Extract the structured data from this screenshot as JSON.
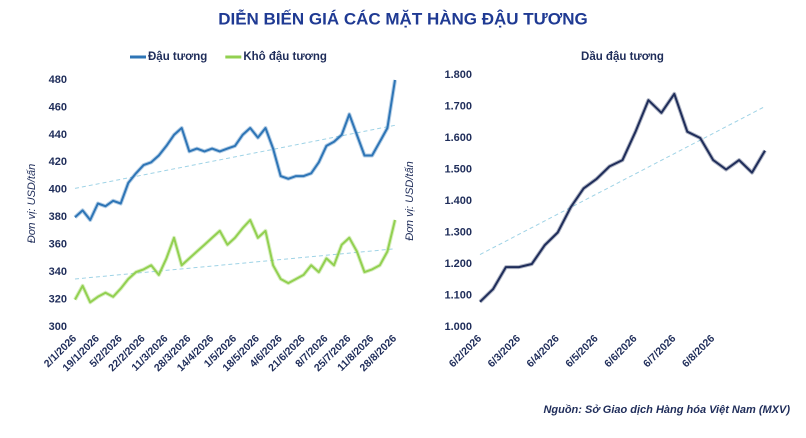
{
  "title": "DIỄN BIẾN GIÁ CÁC MẶT HÀNG ĐẬU TƯƠNG",
  "source": "Nguồn: Sở Giao dịch Hàng hóa Việt Nam (MXV)",
  "chart_data": [
    {
      "type": "line",
      "y_label": "Đơn vị: USD/tấn",
      "categories": [
        "2/1/2026",
        null,
        null,
        "19/1/2026",
        null,
        null,
        "5/2/2026",
        null,
        null,
        "22/2/2026",
        null,
        null,
        "11/3/2026",
        null,
        null,
        "28/3/2026",
        null,
        null,
        "14/4/2026",
        null,
        null,
        "1/5/2026",
        null,
        null,
        "18/5/2026",
        null,
        null,
        "4/6/2026",
        null,
        null,
        "21/6/2026",
        null,
        null,
        "8/7/2026",
        null,
        null,
        "25/7/2026",
        null,
        null,
        "11/8/2026",
        null,
        null,
        "28/8/2026"
      ],
      "series": [
        {
          "name": "Đậu tương",
          "color": "#2e75b6",
          "values": [
            380,
            385,
            378,
            390,
            388,
            392,
            390,
            405,
            412,
            418,
            420,
            425,
            432,
            440,
            445,
            428,
            430,
            428,
            430,
            428,
            430,
            432,
            440,
            445,
            438,
            445,
            430,
            410,
            408,
            410,
            410,
            412,
            420,
            432,
            435,
            440,
            455,
            440,
            425,
            425,
            435,
            445,
            480
          ],
          "trend": [
            401,
            447
          ]
        },
        {
          "name": "Khô đậu tương",
          "color": "#92d050",
          "values": [
            320,
            330,
            318,
            322,
            325,
            322,
            328,
            335,
            340,
            342,
            345,
            338,
            350,
            365,
            345,
            350,
            355,
            360,
            365,
            370,
            360,
            365,
            372,
            378,
            365,
            370,
            345,
            335,
            332,
            335,
            338,
            345,
            340,
            350,
            345,
            360,
            365,
            355,
            340,
            342,
            345,
            355,
            378
          ],
          "trend": [
            335,
            357
          ]
        }
      ],
      "ylim": [
        300,
        480
      ],
      "yticks": [
        300,
        320,
        340,
        360,
        380,
        400,
        420,
        440,
        460,
        480
      ]
    },
    {
      "type": "line",
      "title": "Dầu đậu tương",
      "y_label": "Đơn vị: USD/tấn",
      "categories": [
        "6/2/2026",
        null,
        null,
        "6/3/2026",
        null,
        null,
        "6/4/2026",
        null,
        null,
        "6/5/2026",
        null,
        null,
        "6/6/2026",
        null,
        null,
        "6/7/2026",
        null,
        null,
        "6/8/2026",
        null,
        null,
        null,
        null
      ],
      "series": [
        {
          "color": "#1f2d5a",
          "values": [
            1080,
            1120,
            1190,
            1190,
            1200,
            1260,
            1300,
            1380,
            1440,
            1470,
            1510,
            1530,
            1620,
            1720,
            1680,
            1740,
            1620,
            1600,
            1530,
            1500,
            1530,
            1490,
            1560
          ],
          "trend": [
            1230,
            1700
          ]
        }
      ],
      "ylim": [
        1000,
        1800
      ],
      "yticks": [
        {
          "value": 1000,
          "label": "1.000"
        },
        {
          "value": 1100,
          "label": "1.100"
        },
        {
          "value": 1200,
          "label": "1.200"
        },
        {
          "value": 1300,
          "label": "1.300"
        },
        {
          "value": 1400,
          "label": "1.400"
        },
        {
          "value": 1500,
          "label": "1.500"
        },
        {
          "value": 1600,
          "label": "1.600"
        },
        {
          "value": 1700,
          "label": "1.700"
        },
        {
          "value": 1800,
          "label": "1.800"
        }
      ]
    }
  ]
}
